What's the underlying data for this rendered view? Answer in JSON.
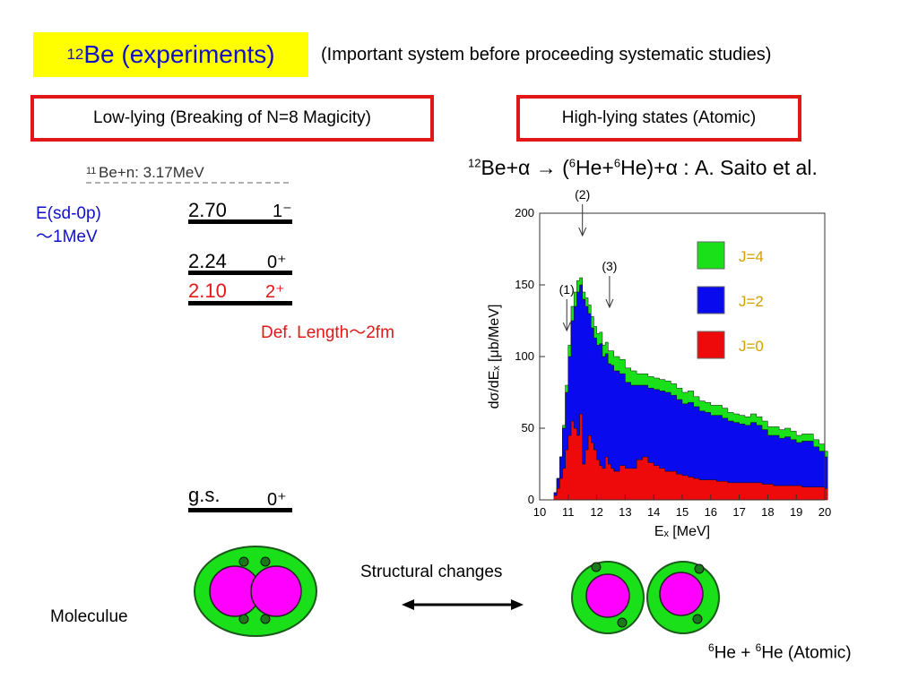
{
  "header": {
    "title_sup": "12",
    "title_main": "Be (experiments)",
    "subtitle": "(Important system before proceeding systematic studies)"
  },
  "sections": {
    "low_label": "Low-lying (Breaking of N=8 Magicity)",
    "high_label": "High-lying states (Atomic)"
  },
  "reaction": {
    "sup1": "12",
    "part1": "Be+α → (",
    "sup2": "6",
    "part2": "He+",
    "sup3": "6",
    "part3": "He)+α : A. Saito et al."
  },
  "level_scheme": {
    "threshold_sup": "11",
    "threshold_text": "Be+n: 3.17MeV",
    "levels": [
      {
        "energy": "2.70",
        "spin": "1⁻",
        "color": "#000000"
      },
      {
        "energy": "2.24",
        "spin": "0⁺",
        "color": "#000000"
      },
      {
        "energy": "2.10",
        "spin": "2⁺",
        "color": "#e01818"
      },
      {
        "energy": "g.s.",
        "spin": "0⁺",
        "color": "#000000"
      }
    ],
    "annotation_line1": "E(sd-0p)",
    "annotation_line2": "～1MeV",
    "def_length": "Def. Length～2fm"
  },
  "chart_data": {
    "type": "area",
    "stacked": true,
    "xlabel": "Eₓ [MeV]",
    "ylabel": "dσ/dEₓ [μb/MeV]",
    "xlim": [
      10,
      20
    ],
    "ylim": [
      0,
      200
    ],
    "xticks": [
      10,
      11,
      12,
      13,
      14,
      15,
      16,
      17,
      18,
      19,
      20
    ],
    "yticks": [
      0,
      50,
      100,
      150,
      200
    ],
    "legend": [
      "J=4",
      "J=2",
      "J=0"
    ],
    "legend_colors": {
      "J=4": "#19e019",
      "J=2": "#0a0aee",
      "J=0": "#ee0a0a"
    },
    "annotations": [
      {
        "label": "(1)",
        "x": 10.95
      },
      {
        "label": "(2)",
        "x": 11.5
      },
      {
        "label": "(3)",
        "x": 12.45
      }
    ],
    "x": [
      10.5,
      10.6,
      10.7,
      10.8,
      10.9,
      11.0,
      11.1,
      11.2,
      11.3,
      11.4,
      11.5,
      11.6,
      11.7,
      11.8,
      11.9,
      12.0,
      12.1,
      12.2,
      12.3,
      12.4,
      12.5,
      12.6,
      12.8,
      13.0,
      13.2,
      13.4,
      13.6,
      13.8,
      14.0,
      14.2,
      14.4,
      14.6,
      14.8,
      15.0,
      15.2,
      15.4,
      15.6,
      15.8,
      16.0,
      16.2,
      16.4,
      16.6,
      16.8,
      17.0,
      17.2,
      17.4,
      17.6,
      17.8,
      18.0,
      18.2,
      18.4,
      18.6,
      18.8,
      19.0,
      19.2,
      19.4,
      19.6,
      19.8,
      20.0
    ],
    "series": [
      {
        "name": "J=0",
        "values": [
          3,
          8,
          15,
          22,
          35,
          45,
          55,
          50,
          45,
          60,
          25,
          35,
          45,
          40,
          35,
          28,
          24,
          22,
          30,
          25,
          22,
          20,
          24,
          22,
          22,
          28,
          30,
          26,
          24,
          22,
          20,
          20,
          18,
          17,
          16,
          15,
          14,
          14,
          14,
          13,
          13,
          12,
          12,
          12,
          12,
          12,
          12,
          11,
          11,
          10,
          10,
          10,
          10,
          10,
          9,
          9,
          9,
          9,
          8
        ]
      },
      {
        "name": "J=2",
        "values": [
          2,
          7,
          15,
          28,
          40,
          55,
          70,
          85,
          100,
          90,
          115,
          100,
          85,
          80,
          78,
          80,
          85,
          78,
          72,
          70,
          72,
          70,
          64,
          60,
          58,
          52,
          50,
          52,
          53,
          54,
          55,
          53,
          52,
          50,
          52,
          50,
          48,
          47,
          45,
          46,
          44,
          43,
          42,
          41,
          40,
          42,
          40,
          38,
          34,
          35,
          33,
          34,
          32,
          30,
          32,
          32,
          28,
          25,
          22
        ]
      },
      {
        "name": "J=4",
        "values": [
          0,
          0,
          0,
          2,
          5,
          8,
          10,
          10,
          8,
          5,
          5,
          6,
          6,
          8,
          8,
          8,
          8,
          8,
          8,
          9,
          10,
          10,
          10,
          10,
          10,
          8,
          8,
          8,
          8,
          8,
          8,
          8,
          8,
          8,
          8,
          7,
          7,
          7,
          7,
          7,
          7,
          6,
          6,
          6,
          6,
          6,
          6,
          6,
          6,
          6,
          6,
          6,
          6,
          5,
          5,
          5,
          5,
          5,
          4
        ]
      }
    ]
  },
  "diagram": {
    "structural_changes": "Structural changes",
    "molecule_label": "Moleculue",
    "atomic_sup1": "6",
    "atomic_part1": "He + ",
    "atomic_sup2": "6",
    "atomic_part2": "He (Atomic)",
    "colors": {
      "outer": "#19e019",
      "core": "#ff00ff",
      "neutron": "#1a7a1a"
    }
  }
}
